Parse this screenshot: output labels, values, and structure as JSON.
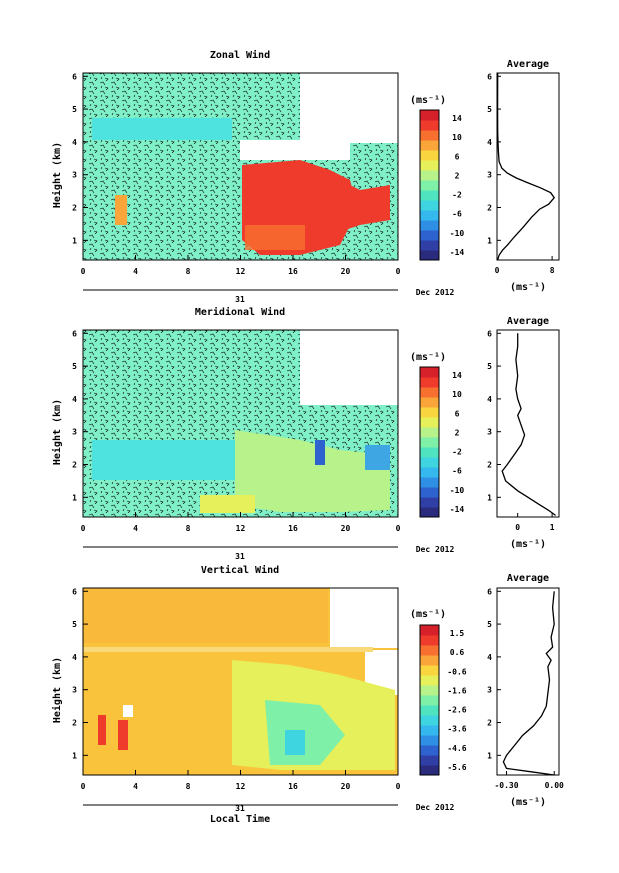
{
  "colorbar_colors": [
    "#2a2b7c",
    "#2f3fa6",
    "#2d62cf",
    "#2f8fe4",
    "#35b8ee",
    "#3ed4e0",
    "#4fe3c0",
    "#7ff0a8",
    "#b7f28a",
    "#e6f05a",
    "#f9d63f",
    "#f9a53a",
    "#f7702f",
    "#ee3b2c",
    "#d6202a"
  ],
  "chart_data": [
    {
      "type": "heatmap",
      "title": "Zonal Wind",
      "ylabel": "Height (km)",
      "xlabel": "",
      "x_ticks": [
        "0",
        "4",
        "8",
        "12",
        "16",
        "20",
        "0"
      ],
      "y_ticks": [
        "1",
        "2",
        "3",
        "4",
        "5",
        "6"
      ],
      "date_tick": "31",
      "date_label": "Dec 2012",
      "colorbar_unit": "(ms⁻¹)",
      "colorbar_ticks": [
        "14",
        "10",
        "6",
        "2",
        "-2",
        "-6",
        "-10",
        "-14"
      ],
      "regions": [
        {
          "name": "background",
          "color": "#7ff0c8"
        },
        {
          "name": "afternoon",
          "color": "#ee3b2c"
        }
      ],
      "profile": {
        "title": "Average",
        "xlabel": "(ms⁻¹)",
        "x_ticks": [
          "0",
          "8"
        ],
        "y_ticks": [
          "1",
          "2",
          "3",
          "4",
          "5",
          "6"
        ],
        "xlim": [
          0,
          9
        ],
        "ylim": [
          0.4,
          6.1
        ],
        "points": [
          [
            0.1,
            0.4
          ],
          [
            0.3,
            0.55
          ],
          [
            0.8,
            0.7
          ],
          [
            1.5,
            0.85
          ],
          [
            2.5,
            1.1
          ],
          [
            3.8,
            1.4
          ],
          [
            5.0,
            1.7
          ],
          [
            6.2,
            1.95
          ],
          [
            7.5,
            2.1
          ],
          [
            8.3,
            2.3
          ],
          [
            7.8,
            2.45
          ],
          [
            6.3,
            2.6
          ],
          [
            4.5,
            2.75
          ],
          [
            2.8,
            2.9
          ],
          [
            1.5,
            3.05
          ],
          [
            0.7,
            3.2
          ],
          [
            0.3,
            3.4
          ],
          [
            0.2,
            3.7
          ],
          [
            0.15,
            4.0
          ],
          [
            0.1,
            4.3
          ],
          [
            0.08,
            5.0
          ],
          [
            0.1,
            6.1
          ]
        ]
      }
    },
    {
      "type": "heatmap",
      "title": "Meridional Wind",
      "ylabel": "Height (km)",
      "xlabel": "",
      "x_ticks": [
        "0",
        "4",
        "8",
        "12",
        "16",
        "20",
        "0"
      ],
      "y_ticks": [
        "1",
        "2",
        "3",
        "4",
        "5",
        "6"
      ],
      "date_tick": "31",
      "date_label": "Dec 2012",
      "colorbar_unit": "(ms⁻¹)",
      "colorbar_ticks": [
        "14",
        "10",
        "6",
        "2",
        "-2",
        "-6",
        "-10",
        "-14"
      ],
      "regions": [
        {
          "name": "background",
          "color": "#7ff0c8"
        },
        {
          "name": "lower",
          "color": "#b7f28a"
        }
      ],
      "profile": {
        "title": "Average",
        "xlabel": "(ms⁻¹)",
        "x_ticks": [
          "0",
          "1"
        ],
        "y_ticks": [
          "1",
          "2",
          "3",
          "4",
          "5",
          "6"
        ],
        "xlim": [
          -0.6,
          1.2
        ],
        "ylim": [
          0.4,
          6.1
        ],
        "points": [
          [
            1.1,
            0.45
          ],
          [
            0.9,
            0.6
          ],
          [
            0.6,
            0.8
          ],
          [
            0.3,
            1.0
          ],
          [
            0.0,
            1.2
          ],
          [
            -0.35,
            1.5
          ],
          [
            -0.45,
            1.8
          ],
          [
            -0.3,
            2.0
          ],
          [
            -0.1,
            2.3
          ],
          [
            0.1,
            2.6
          ],
          [
            0.2,
            2.9
          ],
          [
            0.1,
            3.2
          ],
          [
            0.0,
            3.5
          ],
          [
            0.1,
            3.7
          ],
          [
            0.0,
            4.0
          ],
          [
            -0.05,
            4.3
          ],
          [
            0.0,
            4.7
          ],
          [
            -0.05,
            5.2
          ],
          [
            0.0,
            5.6
          ],
          [
            0.0,
            6.0
          ]
        ]
      }
    },
    {
      "type": "heatmap",
      "title": "Vertical Wind",
      "ylabel": "Height (km)",
      "xlabel": "Local Time",
      "x_ticks": [
        "0",
        "4",
        "8",
        "12",
        "16",
        "20",
        "0"
      ],
      "y_ticks": [
        "1",
        "2",
        "3",
        "4",
        "5",
        "6"
      ],
      "date_tick": "31",
      "date_label": "Dec 2012",
      "colorbar_unit": "(ms⁻¹)",
      "colorbar_ticks": [
        "1.5",
        "0.6",
        "-0.6",
        "-1.6",
        "-2.6",
        "-3.6",
        "-4.6",
        "-5.6"
      ],
      "regions": [
        {
          "name": "background",
          "color": "#f9c33c"
        },
        {
          "name": "afternoon",
          "color": "#e6f05a"
        }
      ],
      "profile": {
        "title": "Average",
        "xlabel": "(ms⁻¹)",
        "x_ticks": [
          "-0.30",
          "0.00"
        ],
        "y_ticks": [
          "1",
          "2",
          "3",
          "4",
          "5",
          "6"
        ],
        "xlim": [
          -0.36,
          0.03
        ],
        "ylim": [
          0.4,
          6.1
        ],
        "points": [
          [
            0.0,
            0.4
          ],
          [
            -0.15,
            0.5
          ],
          [
            -0.3,
            0.6
          ],
          [
            -0.32,
            0.8
          ],
          [
            -0.3,
            1.0
          ],
          [
            -0.25,
            1.3
          ],
          [
            -0.2,
            1.6
          ],
          [
            -0.13,
            1.9
          ],
          [
            -0.08,
            2.2
          ],
          [
            -0.05,
            2.5
          ],
          [
            -0.04,
            2.9
          ],
          [
            -0.03,
            3.3
          ],
          [
            -0.04,
            3.7
          ],
          [
            -0.02,
            3.9
          ],
          [
            -0.05,
            4.1
          ],
          [
            -0.01,
            4.3
          ],
          [
            -0.02,
            4.6
          ],
          [
            0.0,
            5.0
          ],
          [
            -0.01,
            5.5
          ],
          [
            0.0,
            6.0
          ]
        ]
      }
    }
  ]
}
